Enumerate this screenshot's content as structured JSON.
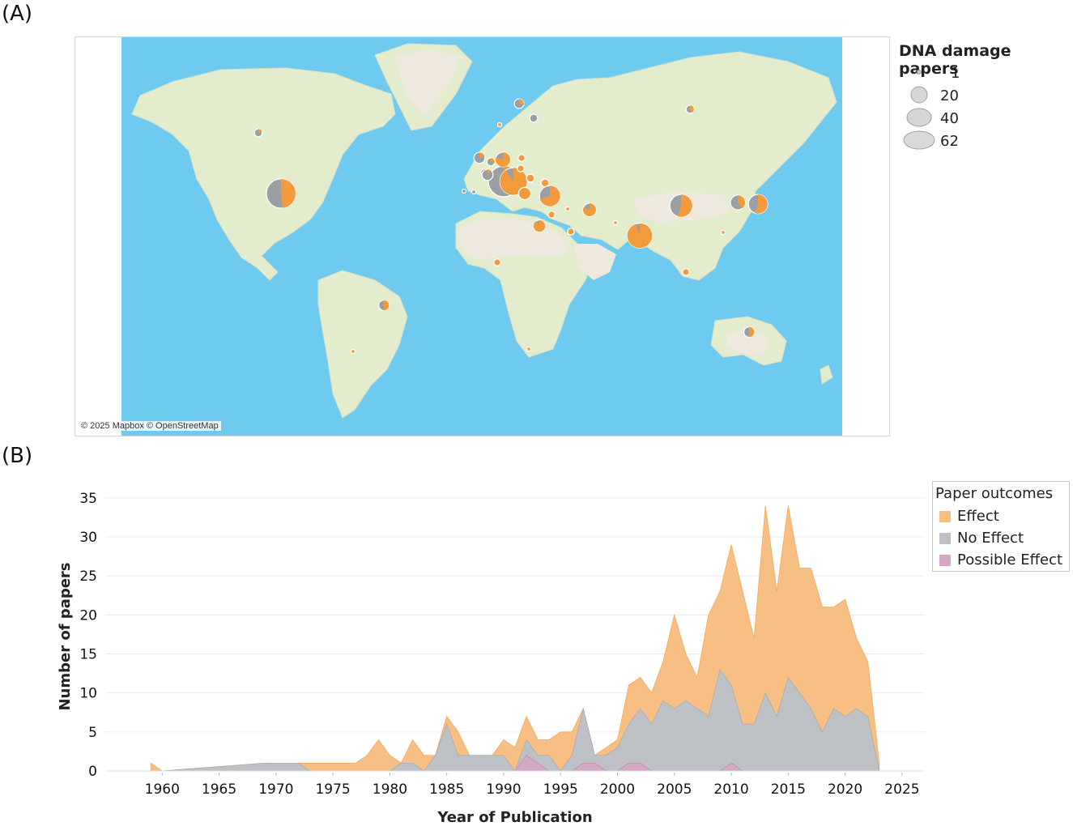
{
  "panel_a_label": "(A)",
  "panel_b_label": "(B)",
  "map": {
    "attribution": "© 2025 Mapbox © OpenStreetMap",
    "ocean_color": "#6ecbef",
    "land_color": "#e3eccd",
    "desert_color": "#efe8df",
    "effect_color": "#f39b3c",
    "no_effect_color": "#9b9ea3",
    "legend_title": "DNA damage papers",
    "legend_sizes": [
      "1",
      "20",
      "40",
      "62"
    ],
    "locations": [
      {
        "name": "USA",
        "total": 56,
        "effect_share": 0.48
      },
      {
        "name": "Canada",
        "total": 4,
        "effect_share": 0.2
      },
      {
        "name": "Brazil",
        "total": 7,
        "effect_share": 0.5
      },
      {
        "name": "Argentina",
        "total": 1,
        "effect_share": 1.0
      },
      {
        "name": "UK",
        "total": 8,
        "effect_share": 0.2
      },
      {
        "name": "Sweden",
        "total": 6,
        "effect_share": 0.3
      },
      {
        "name": "Finland",
        "total": 4,
        "effect_share": 0.0
      },
      {
        "name": "Norway",
        "total": 1,
        "effect_share": 1.0
      },
      {
        "name": "Netherlands",
        "total": 4,
        "effect_share": 0.3
      },
      {
        "name": "Belgium",
        "total": 3,
        "effect_share": 0.5
      },
      {
        "name": "France",
        "total": 62,
        "effect_share": 0.25
      },
      {
        "name": "Spain",
        "total": 1,
        "effect_share": 0.0
      },
      {
        "name": "Portugal",
        "total": 1,
        "effect_share": 0.0
      },
      {
        "name": "Germany",
        "total": 14,
        "effect_share": 0.8
      },
      {
        "name": "Switzerland",
        "total": 8,
        "effect_share": 0.1
      },
      {
        "name": "Italy",
        "total": 48,
        "effect_share": 0.9
      },
      {
        "name": "Austria",
        "total": 4,
        "effect_share": 1.0
      },
      {
        "name": "Poland",
        "total": 3,
        "effect_share": 1.0
      },
      {
        "name": "Hungary",
        "total": 3,
        "effect_share": 1.0
      },
      {
        "name": "Serbia",
        "total": 4,
        "effect_share": 1.0
      },
      {
        "name": "Greece",
        "total": 10,
        "effect_share": 1.0
      },
      {
        "name": "Turkey",
        "total": 28,
        "effect_share": 0.7
      },
      {
        "name": "Egypt",
        "total": 9,
        "effect_share": 0.9
      },
      {
        "name": "Jordan",
        "total": 3,
        "effect_share": 1.0
      },
      {
        "name": "Saudi Arabia",
        "total": 3,
        "effect_share": 1.0
      },
      {
        "name": "Iran",
        "total": 11,
        "effect_share": 0.8
      },
      {
        "name": "Iraq",
        "total": 1,
        "effect_share": 1.0
      },
      {
        "name": "India",
        "total": 40,
        "effect_share": 0.95
      },
      {
        "name": "Pakistan",
        "total": 1,
        "effect_share": 1.0
      },
      {
        "name": "China",
        "total": 33,
        "effect_share": 0.55
      },
      {
        "name": "Korea",
        "total": 14,
        "effect_share": 0.4
      },
      {
        "name": "Japan",
        "total": 24,
        "effect_share": 0.55
      },
      {
        "name": "Taiwan",
        "total": 1,
        "effect_share": 1.0
      },
      {
        "name": "Malaysia",
        "total": 3,
        "effect_share": 1.0
      },
      {
        "name": "Russia",
        "total": 4,
        "effect_share": 0.4
      },
      {
        "name": "Nigeria",
        "total": 3,
        "effect_share": 1.0
      },
      {
        "name": "South Africa",
        "total": 1,
        "effect_share": 1.0
      },
      {
        "name": "Australia",
        "total": 7,
        "effect_share": 0.5
      }
    ]
  },
  "chart_data": {
    "type": "area",
    "title": "",
    "xlabel": "Year of Publication",
    "ylabel": "Number of papers",
    "xlim": [
      1955,
      2025
    ],
    "ylim": [
      0,
      35
    ],
    "x_ticks": [
      "1960",
      "1965",
      "1970",
      "1975",
      "1980",
      "1985",
      "1990",
      "1995",
      "2000",
      "2005",
      "2010",
      "2015",
      "2020",
      "2025"
    ],
    "y_ticks": [
      "0",
      "5",
      "10",
      "15",
      "20",
      "25",
      "30",
      "35"
    ],
    "legend_title": "Paper outcomes",
    "legend_position": "right",
    "x": [
      1959,
      1960,
      1969,
      1970,
      1971,
      1972,
      1973,
      1977,
      1978,
      1979,
      1980,
      1981,
      1982,
      1983,
      1984,
      1985,
      1986,
      1987,
      1988,
      1989,
      1990,
      1991,
      1992,
      1993,
      1994,
      1995,
      1996,
      1997,
      1998,
      1999,
      2000,
      2001,
      2002,
      2003,
      2004,
      2005,
      2006,
      2007,
      2008,
      2009,
      2010,
      2011,
      2012,
      2013,
      2014,
      2015,
      2016,
      2017,
      2018,
      2019,
      2020,
      2021,
      2022,
      2023
    ],
    "series": [
      {
        "name": "No Effect",
        "color": "#bdc1c6",
        "values": [
          0,
          0,
          1,
          1,
          1,
          1,
          0,
          0,
          0,
          0,
          0,
          1,
          1,
          0,
          2,
          6,
          2,
          2,
          2,
          2,
          2,
          0,
          4,
          2,
          2,
          0,
          2,
          8,
          2,
          2,
          3,
          6,
          8,
          6,
          9,
          8,
          9,
          8,
          7,
          13,
          11,
          6,
          6,
          10,
          7,
          12,
          10,
          8,
          5,
          8,
          7,
          8,
          7,
          0
        ]
      },
      {
        "name": "Effect",
        "color": "#f8bf85",
        "values": [
          1,
          0,
          0,
          0,
          0,
          0,
          1,
          1,
          2,
          4,
          2,
          0,
          3,
          2,
          0,
          1,
          3,
          0,
          0,
          0,
          2,
          3,
          3,
          2,
          2,
          5,
          3,
          0,
          0,
          1,
          1,
          5,
          4,
          4,
          5,
          12,
          6,
          4,
          13,
          10,
          18,
          17,
          11,
          24,
          16,
          22,
          16,
          18,
          16,
          13,
          15,
          9,
          7,
          1
        ]
      },
      {
        "name": "Possible Effect",
        "color": "#d6a6c6",
        "values": [
          0,
          0,
          0,
          0,
          0,
          0,
          0,
          0,
          0,
          0,
          0,
          0,
          0,
          0,
          0,
          0,
          0,
          0,
          0,
          0,
          0,
          0,
          2,
          1,
          0,
          0,
          0,
          1,
          1,
          0,
          0,
          1,
          1,
          0,
          0,
          0,
          0,
          0,
          0,
          0,
          1,
          0,
          0,
          0,
          0,
          0,
          0,
          0,
          0,
          0,
          0,
          0,
          0,
          0
        ]
      }
    ],
    "stack_order": [
      "No Effect",
      "Effect"
    ],
    "overlay_series": "Possible Effect"
  }
}
